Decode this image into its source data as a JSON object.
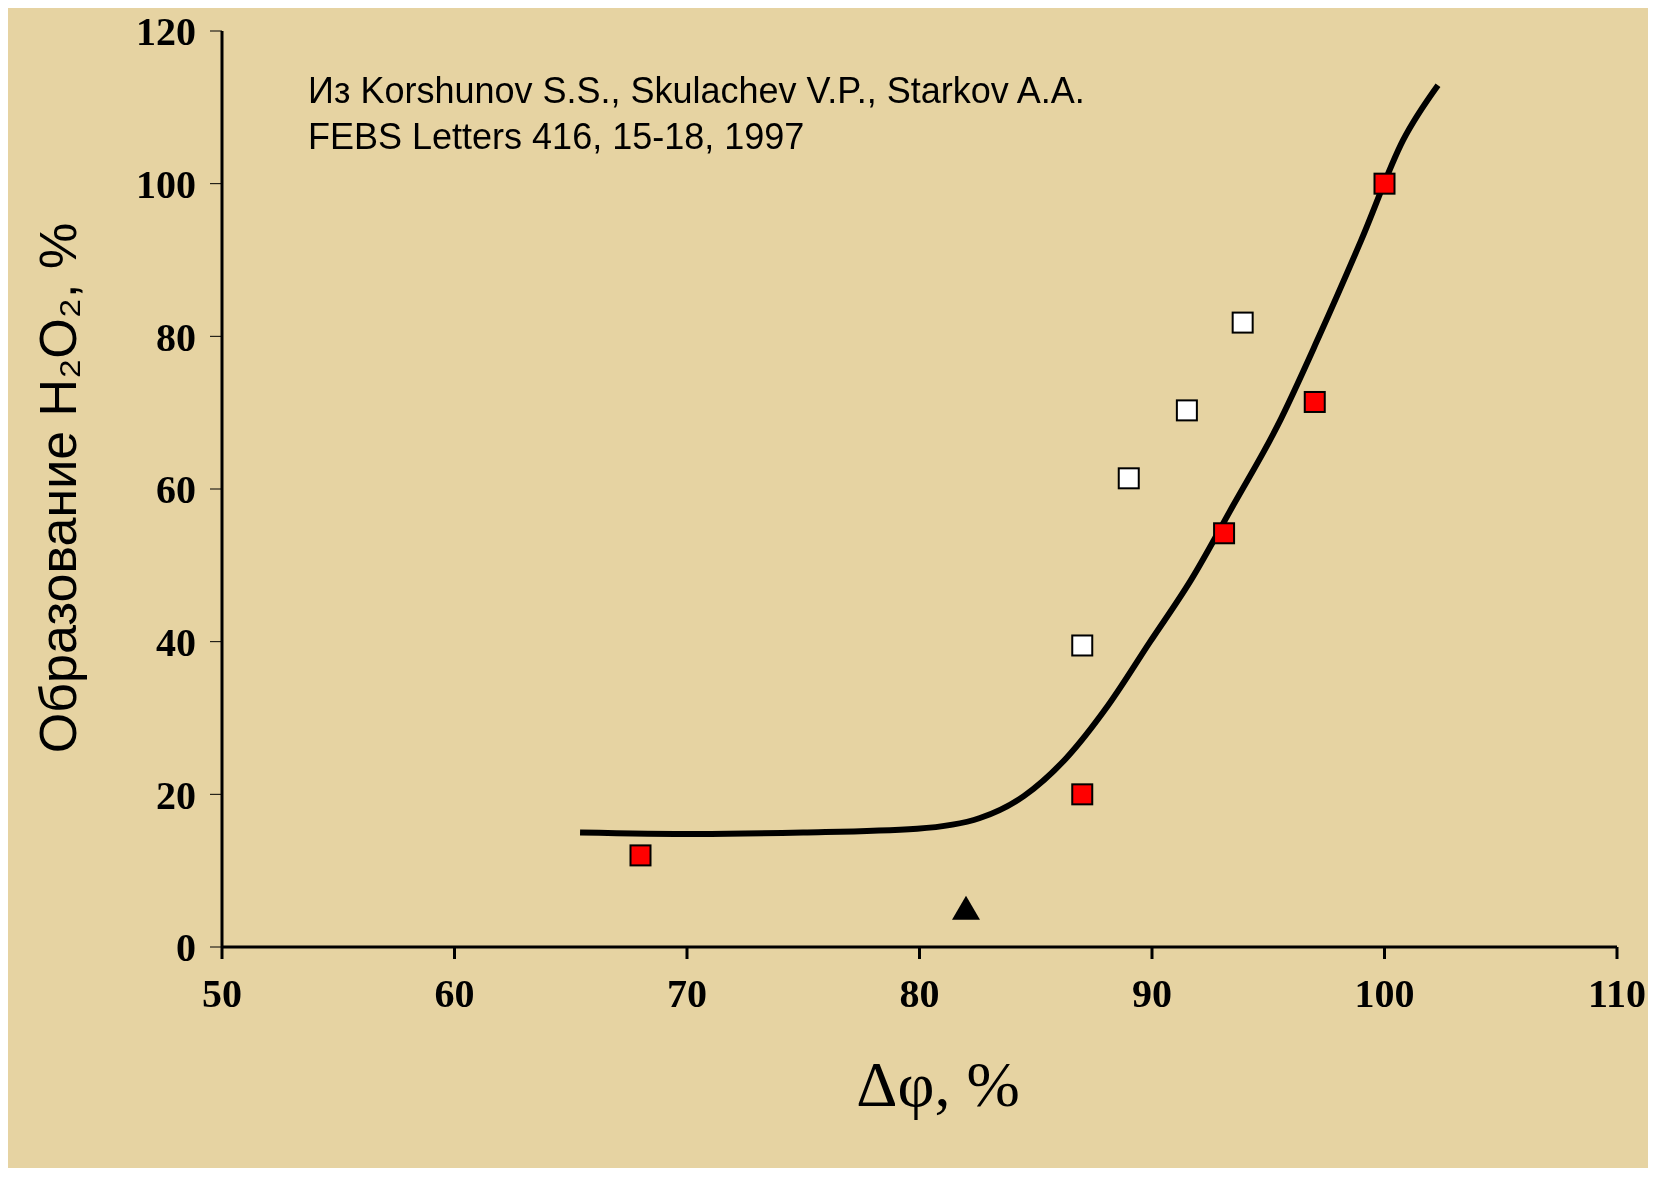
{
  "chart_data": {
    "type": "scatter",
    "xlabel": "Δφ, %",
    "ylabel": "Образование H₂O₂, %",
    "annotations": [
      "Из Korshunov S.S., Skulachev V.P., Starkov A.A.",
      "FEBS Letters 416, 15-18, 1997"
    ],
    "xlim": [
      50,
      110
    ],
    "xticks": [
      50,
      60,
      70,
      80,
      90,
      100,
      110
    ],
    "ylim": [
      0,
      120
    ],
    "yticks": [
      0,
      20,
      40,
      60,
      80,
      100,
      120
    ],
    "grid": false,
    "legend": false,
    "series": [
      {
        "marker": "square",
        "color": "#ff0000",
        "x": [
          68,
          87,
          93.1,
          97,
          100
        ],
        "values": [
          12,
          20,
          54.2,
          71.4,
          100
        ]
      },
      {
        "marker": "square",
        "color": "#ffffff",
        "x": [
          87,
          89,
          91.5,
          93.9
        ],
        "values": [
          39.5,
          61.4,
          70.3,
          81.8
        ]
      },
      {
        "marker": "triangle",
        "color": "#000000",
        "x": [
          82
        ],
        "values": [
          5
        ]
      },
      {
        "type": "line",
        "marker": "none",
        "color": "#000000",
        "x": [
          65.4,
          70.4,
          75,
          79.9,
          82.6,
          84.5,
          86.3,
          88.1,
          89.9,
          91.7,
          93.5,
          95.4,
          97.2,
          99,
          100.8,
          102.3
        ],
        "values": [
          15,
          14.8,
          15,
          15.5,
          16.9,
          19.8,
          24.7,
          31.6,
          39.9,
          48.2,
          57.9,
          68.3,
          80.1,
          92.6,
          105.7,
          112.9
        ]
      }
    ]
  }
}
